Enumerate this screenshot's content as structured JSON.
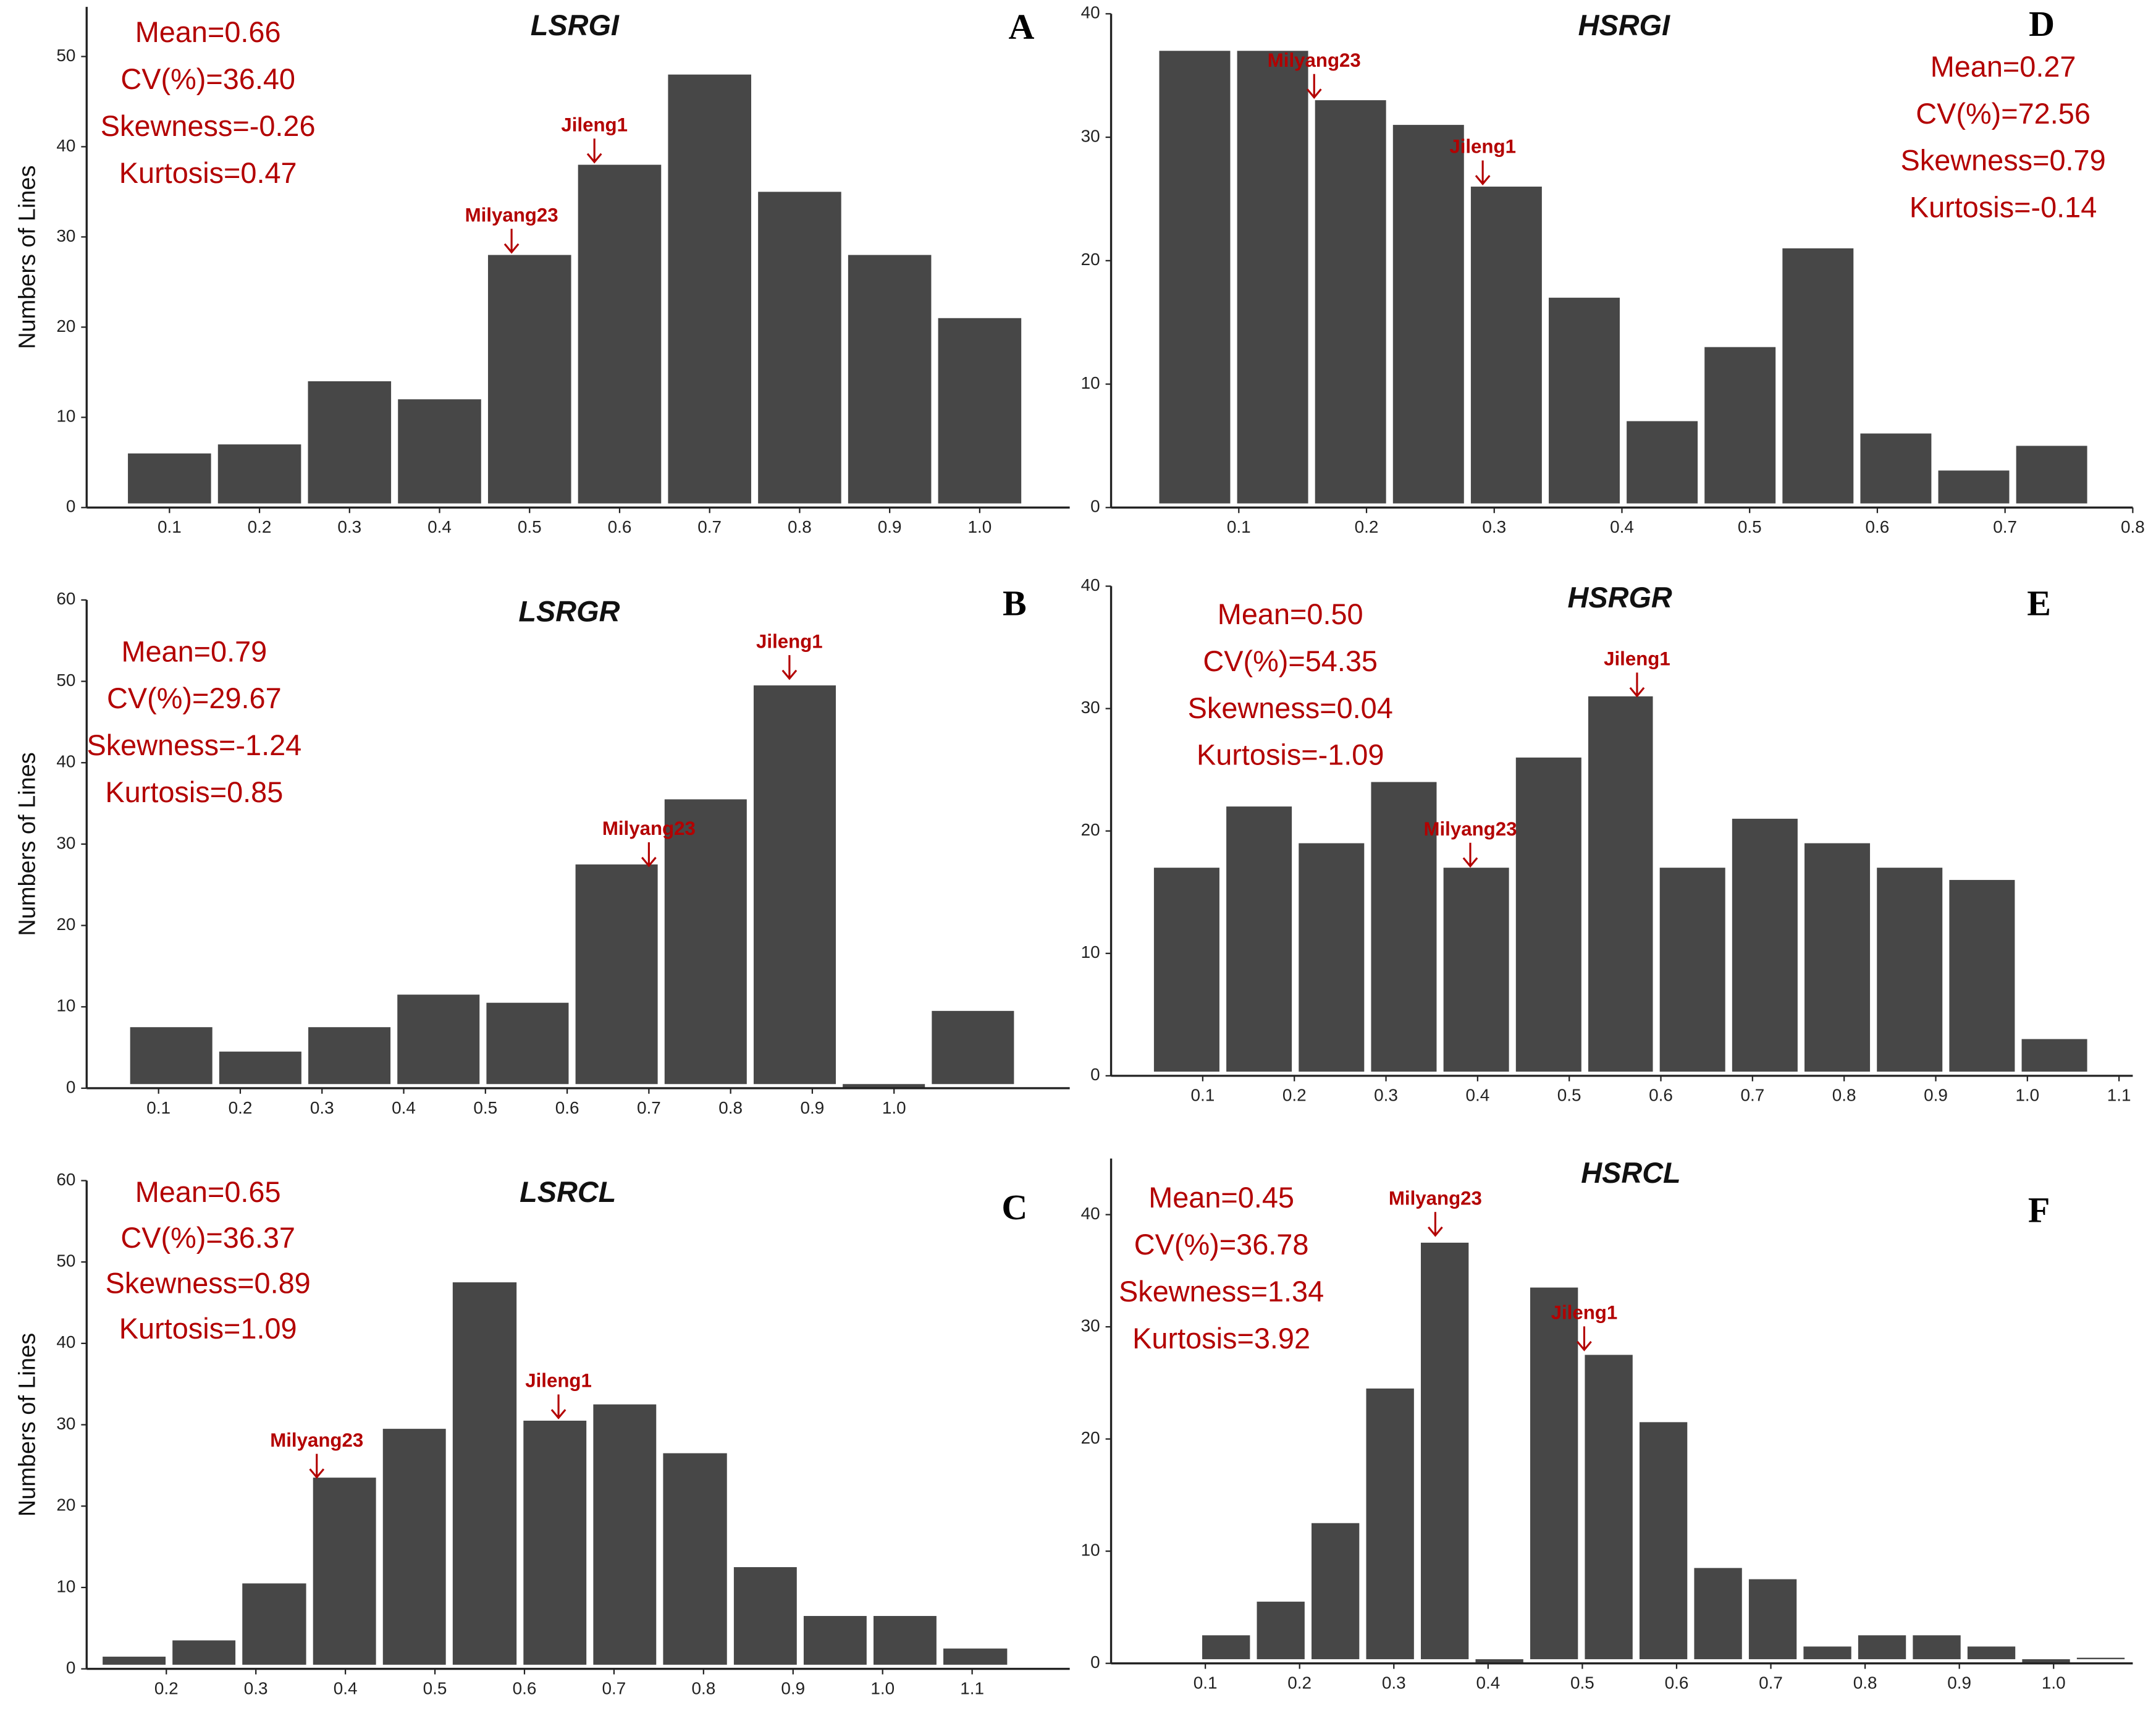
{
  "chart_data": [
    {
      "type": "histogram",
      "title": "LSRGI",
      "panel": "A",
      "y_label": "Numbers of Lines",
      "stats": [
        "Mean=0.66",
        "CV(%)=36.40",
        "Skewness=-0.26",
        "Kurtosis=0.47"
      ],
      "bins": [
        0.05,
        0.15,
        0.25,
        0.35,
        0.45,
        0.55,
        0.65,
        0.75,
        0.85,
        0.95,
        1.05
      ],
      "values": [
        6,
        7,
        14,
        12,
        28,
        38,
        48,
        35,
        28,
        21
      ],
      "color": "#474747",
      "xlim": [
        0.008,
        1.1
      ],
      "xticks": [
        0.1,
        0.2,
        0.3,
        0.4,
        0.5,
        0.6,
        0.7,
        0.8,
        0.9,
        {
          "value": 1,
          "label": "1.0"
        }
      ],
      "ylim": [
        0,
        55.5
      ],
      "yticks": [
        0,
        10,
        20,
        30,
        40,
        50
      ],
      "annotations": [
        {
          "text": "Milyang23",
          "x": 0.48,
          "y": 28
        },
        {
          "text": "Jileng1",
          "x": 0.572,
          "y": 38
        }
      ]
    },
    {
      "type": "histogram",
      "title": "HSRGI",
      "panel": "D",
      "stats": [
        "Mean=0.27",
        "CV(%)=72.56",
        "Skewness=0.79",
        "Kurtosis=-0.14"
      ],
      "bins": [
        0.035,
        0.096,
        0.157,
        0.218,
        0.279,
        0.34,
        0.401,
        0.462,
        0.523,
        0.584,
        0.645,
        0.706,
        0.767
      ],
      "values": [
        37,
        37,
        33,
        31,
        26,
        17,
        7,
        13,
        21,
        6,
        3,
        5
      ],
      "color": "#474747",
      "xlim": [
        0,
        0.8
      ],
      "xticks": [
        0.1,
        0.2,
        0.3,
        0.4,
        0.5,
        0.6,
        0.7,
        0.8
      ],
      "ylim": [
        0,
        40
      ],
      "yticks": [
        0,
        10,
        20,
        30,
        40
      ],
      "annotations": [
        {
          "text": "Milyang23",
          "x": 0.159,
          "y": 33
        },
        {
          "text": "Jileng1",
          "x": 0.291,
          "y": 26
        }
      ]
    },
    {
      "type": "histogram",
      "title": "LSRGR",
      "panel": "B",
      "y_label": "Numbers of Lines",
      "stats": [
        "Mean=0.79",
        "CV(%)=29.67",
        "Skewness=-1.24",
        "Kurtosis=0.85"
      ],
      "bins": [
        0.061,
        0.17,
        0.279,
        0.388,
        0.497,
        0.606,
        0.715,
        0.824,
        0.933,
        1.042,
        1.151
      ],
      "values": [
        7.5,
        4.5,
        7.5,
        11.5,
        10.5,
        27.5,
        35.5,
        49.5,
        0,
        9.5
      ],
      "color": "#474747",
      "xlim": [
        0.012,
        1.215
      ],
      "xticks": [
        0.1,
        0.2,
        0.3,
        0.4,
        0.5,
        0.6,
        0.7,
        0.8,
        0.9,
        {
          "value": 1,
          "label": "1.0"
        }
      ],
      "ylim": [
        0,
        60
      ],
      "yticks": [
        0,
        10,
        20,
        30,
        40,
        50,
        60
      ],
      "annotations": [
        {
          "text": "Jileng1",
          "x": 0.872,
          "y": 50
        },
        {
          "text": "Milyang23",
          "x": 0.7,
          "y": 27
        }
      ]
    },
    {
      "type": "histogram",
      "title": "HSRGR",
      "panel": "E",
      "stats": [
        "Mean=0.50",
        "CV(%)=54.35",
        "Skewness=0.04",
        "Kurtosis=-1.09"
      ],
      "bins": [
        0.043,
        0.122,
        0.201,
        0.28,
        0.359,
        0.438,
        0.517,
        0.595,
        0.674,
        0.753,
        0.832,
        0.911,
        0.99,
        1.069
      ],
      "values": [
        17,
        22,
        19,
        24,
        17,
        26,
        31,
        17,
        21,
        19,
        17,
        16,
        3
      ],
      "color": "#474747",
      "xlim": [
        0,
        1.115
      ],
      "xticks": [
        0.1,
        0.2,
        0.3,
        0.4,
        0.5,
        0.6,
        0.7,
        0.8,
        0.9,
        {
          "value": 1,
          "label": "1.0"
        },
        1.1
      ],
      "ylim": [
        0,
        40
      ],
      "yticks": [
        0,
        10,
        20,
        30,
        40
      ],
      "annotations": [
        {
          "text": "Jileng1",
          "x": 0.574,
          "y": 30.8
        },
        {
          "text": "Milyang23",
          "x": 0.392,
          "y": 16.9
        }
      ]
    },
    {
      "type": "histogram",
      "title": "LSRCL",
      "panel": "C",
      "y_label": "Numbers of Lines",
      "stats": [
        "Mean=0.65",
        "CV(%)=36.37",
        "Skewness=0.89",
        "Kurtosis=1.09"
      ],
      "bins": [
        0.125,
        0.203,
        0.281,
        0.36,
        0.438,
        0.516,
        0.595,
        0.673,
        0.751,
        0.83,
        0.908,
        0.986,
        1.064,
        1.143
      ],
      "values": [
        1.5,
        3.5,
        10.5,
        23.5,
        29.5,
        47.5,
        30.5,
        32.5,
        26.5,
        12.5,
        6.5,
        6.5,
        2.5
      ],
      "color": "#474747",
      "xlim": [
        0.111,
        1.209
      ],
      "xticks": [
        0.2,
        0.3,
        0.4,
        0.5,
        0.6,
        0.7,
        0.8,
        0.9,
        {
          "value": 1,
          "label": "1.0"
        },
        1.1
      ],
      "ylim": [
        0,
        60
      ],
      "yticks": [
        0,
        10,
        20,
        30,
        40,
        50,
        60
      ],
      "annotations": [
        {
          "text": "Milyang23",
          "x": 0.368,
          "y": 23.2
        },
        {
          "text": "Jileng1",
          "x": 0.638,
          "y": 30.5
        }
      ]
    },
    {
      "type": "histogram",
      "title": "HSRCL",
      "panel": "F",
      "stats": [
        "Mean=0.45",
        "CV(%)=36.78",
        "Skewness=1.34",
        "Kurtosis=3.92"
      ],
      "bins": [
        0.093,
        0.151,
        0.209,
        0.267,
        0.325,
        0.383,
        0.441,
        0.499,
        0.557,
        0.615,
        0.673,
        0.731,
        0.789,
        0.847,
        0.905,
        0.963,
        1.021,
        1.079
      ],
      "values": [
        2.5,
        5.5,
        12.5,
        24.5,
        37.5,
        0,
        33.5,
        27.5,
        21.5,
        8.5,
        7.5,
        1.5,
        2.5,
        2.5,
        1.5,
        0,
        0.5
      ],
      "color": "#474747",
      "xlim": [
        0,
        1.084
      ],
      "xticks": [
        0.1,
        0.2,
        0.3,
        0.4,
        0.5,
        0.6,
        0.7,
        0.8,
        0.9,
        {
          "value": 1,
          "label": "1.0"
        }
      ],
      "ylim": [
        0,
        45
      ],
      "yticks": [
        0,
        10,
        20,
        30,
        40
      ],
      "annotations": [
        {
          "text": "Milyang23",
          "x": 0.344,
          "y": 37.9
        },
        {
          "text": "Jileng1",
          "x": 0.502,
          "y": 27.7
        }
      ]
    }
  ]
}
